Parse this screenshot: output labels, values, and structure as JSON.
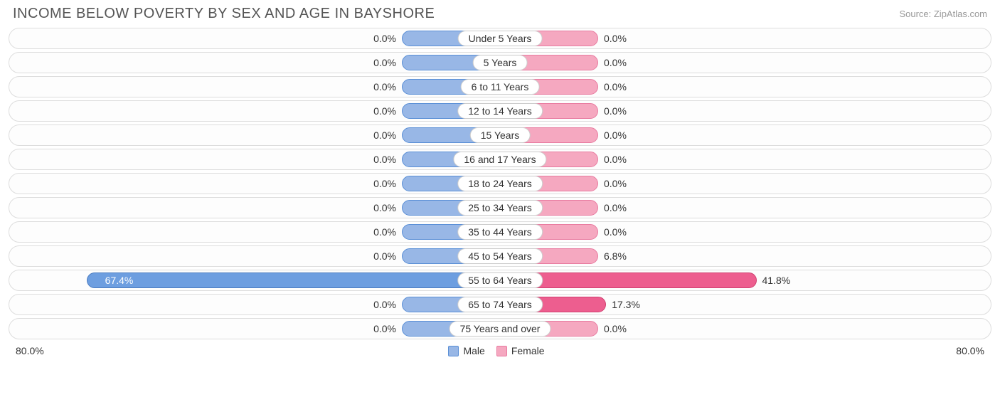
{
  "title": "INCOME BELOW POVERTY BY SEX AND AGE IN BAYSHORE",
  "source": "Source: ZipAtlas.com",
  "axis_max": 80.0,
  "axis_left_label": "80.0%",
  "axis_right_label": "80.0%",
  "min_bar_pct": 20.0,
  "colors": {
    "male_fill": "#98b7e6",
    "male_border": "#5a8fd6",
    "male_full_fill": "#6d9ee0",
    "male_full_border": "#4a7bc0",
    "female_fill": "#f5a8c0",
    "female_border": "#e87ba0",
    "female_full_fill": "#ed5e8f",
    "female_full_border": "#d04070",
    "track_border": "#dddddd",
    "text": "#333333",
    "title_text": "#555555",
    "source_text": "#999999",
    "pill_bg": "#ffffff",
    "pill_border": "#cccccc"
  },
  "legend": {
    "male": "Male",
    "female": "Female"
  },
  "rows": [
    {
      "label": "Under 5 Years",
      "male": 0.0,
      "female": 0.0
    },
    {
      "label": "5 Years",
      "male": 0.0,
      "female": 0.0
    },
    {
      "label": "6 to 11 Years",
      "male": 0.0,
      "female": 0.0
    },
    {
      "label": "12 to 14 Years",
      "male": 0.0,
      "female": 0.0
    },
    {
      "label": "15 Years",
      "male": 0.0,
      "female": 0.0
    },
    {
      "label": "16 and 17 Years",
      "male": 0.0,
      "female": 0.0
    },
    {
      "label": "18 to 24 Years",
      "male": 0.0,
      "female": 0.0
    },
    {
      "label": "25 to 34 Years",
      "male": 0.0,
      "female": 0.0
    },
    {
      "label": "35 to 44 Years",
      "male": 0.0,
      "female": 0.0
    },
    {
      "label": "45 to 54 Years",
      "male": 0.0,
      "female": 6.8
    },
    {
      "label": "55 to 64 Years",
      "male": 67.4,
      "female": 41.8
    },
    {
      "label": "65 to 74 Years",
      "male": 0.0,
      "female": 17.3
    },
    {
      "label": "75 Years and over",
      "male": 0.0,
      "female": 0.0
    }
  ]
}
